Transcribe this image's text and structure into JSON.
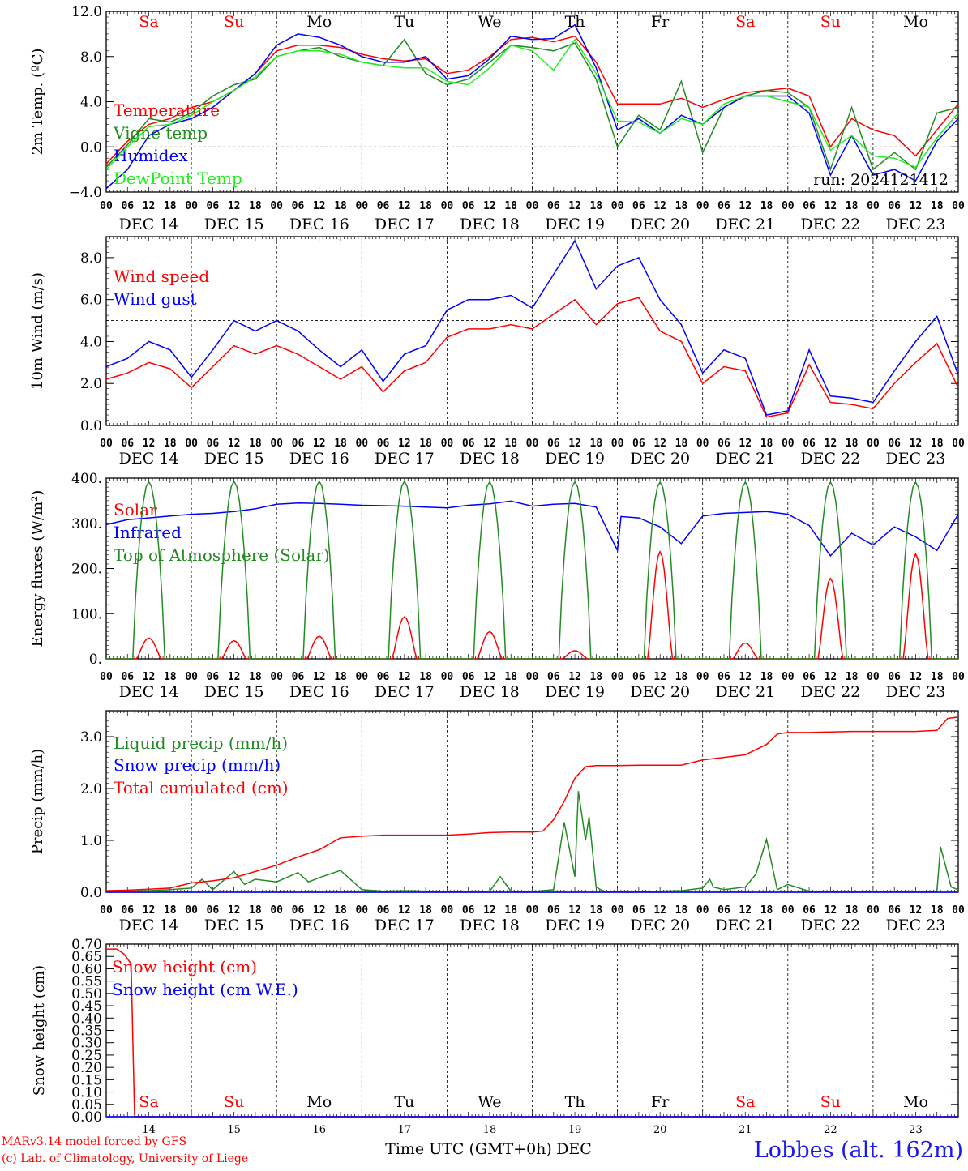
{
  "colors": {
    "red": "#ff0000",
    "green": "#228b22",
    "blue": "#0000ff",
    "light_green": "#22ee22",
    "black": "#000000"
  },
  "day_names": [
    {
      "label": "Sa",
      "color": "red"
    },
    {
      "label": "Su",
      "color": "red"
    },
    {
      "label": "Mo",
      "color": "black"
    },
    {
      "label": "Tu",
      "color": "black"
    },
    {
      "label": "We",
      "color": "black"
    },
    {
      "label": "Th",
      "color": "black"
    },
    {
      "label": "Fr",
      "color": "black"
    },
    {
      "label": "Sa",
      "color": "red"
    },
    {
      "label": "Su",
      "color": "red"
    },
    {
      "label": "Mo",
      "color": "black"
    }
  ],
  "date_labels": [
    "DEC 14",
    "DEC 15",
    "DEC 16",
    "DEC 17",
    "DEC 18",
    "DEC 19",
    "DEC 20",
    "DEC 21",
    "DEC 22",
    "DEC 23"
  ],
  "hour_labels": [
    "00",
    "06",
    "12",
    "18"
  ],
  "hour_end_label": "00",
  "day_numbers": [
    "14",
    "15",
    "16",
    "17",
    "18",
    "19",
    "20",
    "21",
    "22",
    "23"
  ],
  "footer": {
    "xlabel": "Time UTC (GMT+0h)",
    "month": "DEC",
    "credit_line1": "MARv3.14 model forced by GFS",
    "credit_line2": "(c) Lab. of Climatology, University of Liege",
    "station": "Lobbes (alt. 162m)"
  },
  "chart_data": [
    {
      "id": "temperature",
      "type": "line",
      "ylabel": "2m Temp. (ºC)",
      "ylim": [
        -4,
        12
      ],
      "yticks": [
        -4,
        0,
        4,
        8,
        12
      ],
      "ytick_labels": [
        "−4.0",
        "0.0",
        "4.0",
        "8.0",
        "12.0"
      ],
      "minor_step": 0.5,
      "reference_line": 0,
      "annotation": "run: 2024121412",
      "x_unit": "hours since DEC 14 00 UTC",
      "xlim": [
        0,
        240
      ],
      "series": [
        {
          "name": "Temperature",
          "color": "red",
          "x": [
            0,
            6,
            12,
            18,
            24,
            30,
            36,
            42,
            48,
            54,
            60,
            66,
            72,
            78,
            84,
            90,
            96,
            102,
            108,
            114,
            120,
            126,
            132,
            138,
            144,
            150,
            156,
            162,
            168,
            174,
            180,
            186,
            192,
            198,
            204,
            210,
            216,
            222,
            228,
            234,
            240
          ],
          "y": [
            -1.5,
            0.5,
            2.0,
            2.5,
            3.5,
            4.0,
            5.0,
            6.5,
            8.5,
            9.0,
            9.0,
            8.8,
            8.2,
            7.8,
            7.6,
            7.8,
            6.5,
            6.8,
            8.0,
            9.5,
            9.7,
            9.3,
            9.8,
            7.5,
            3.8,
            3.8,
            3.8,
            4.3,
            3.5,
            4.2,
            4.8,
            5.0,
            5.2,
            4.5,
            0.0,
            2.5,
            1.5,
            1.0,
            -0.8,
            1.5,
            3.8
          ]
        },
        {
          "name": "Vigne temp",
          "color": "green",
          "x": [
            0,
            6,
            12,
            18,
            24,
            30,
            36,
            42,
            48,
            54,
            60,
            66,
            72,
            78,
            84,
            90,
            96,
            102,
            108,
            114,
            120,
            126,
            132,
            138,
            144,
            150,
            156,
            162,
            168,
            174,
            180,
            186,
            192,
            198,
            204,
            210,
            216,
            222,
            228,
            234,
            240
          ],
          "y": [
            -1.8,
            0.2,
            2.5,
            2.2,
            3.0,
            4.5,
            5.5,
            6.0,
            8.0,
            8.5,
            8.8,
            8.0,
            7.5,
            7.2,
            9.5,
            6.5,
            5.5,
            6.0,
            7.5,
            9.0,
            8.8,
            8.5,
            9.2,
            6.0,
            0.0,
            2.8,
            1.5,
            5.8,
            -0.5,
            3.5,
            4.5,
            5.0,
            4.8,
            3.5,
            -2.0,
            3.5,
            -2.0,
            -0.5,
            -2.0,
            3.0,
            3.5
          ]
        },
        {
          "name": "Humidex",
          "color": "blue",
          "x": [
            0,
            6,
            12,
            18,
            24,
            30,
            36,
            42,
            48,
            54,
            60,
            66,
            72,
            78,
            84,
            90,
            96,
            102,
            108,
            114,
            120,
            126,
            132,
            138,
            144,
            150,
            156,
            162,
            168,
            174,
            180,
            186,
            192,
            198,
            204,
            210,
            216,
            222,
            228,
            234,
            240
          ],
          "y": [
            -3.7,
            -2.0,
            1.0,
            2.0,
            2.5,
            3.5,
            5.0,
            6.5,
            9.0,
            10.0,
            9.7,
            9.0,
            8.0,
            7.5,
            7.5,
            8.0,
            6.0,
            6.3,
            7.8,
            9.8,
            9.5,
            9.6,
            10.8,
            7.0,
            1.5,
            2.5,
            1.2,
            2.8,
            2.0,
            3.5,
            4.5,
            4.5,
            4.5,
            3.0,
            -2.5,
            1.0,
            -2.5,
            -2.0,
            -3.0,
            0.5,
            2.5
          ]
        },
        {
          "name": "DewPoint Temp",
          "color": "light_green",
          "x": [
            0,
            6,
            12,
            18,
            24,
            30,
            36,
            42,
            48,
            54,
            60,
            66,
            72,
            78,
            84,
            90,
            96,
            102,
            108,
            114,
            120,
            126,
            132,
            138,
            144,
            150,
            156,
            162,
            168,
            174,
            180,
            186,
            192,
            198,
            204,
            210,
            216,
            222,
            228,
            234,
            240
          ],
          "y": [
            -2.0,
            0.0,
            1.8,
            2.0,
            2.8,
            4.0,
            5.0,
            6.2,
            8.0,
            8.5,
            8.5,
            8.2,
            7.5,
            7.2,
            7.0,
            7.0,
            5.8,
            5.5,
            7.0,
            9.0,
            8.5,
            6.8,
            9.5,
            6.5,
            2.3,
            2.2,
            1.2,
            2.5,
            2.0,
            3.8,
            4.5,
            4.5,
            4.0,
            3.5,
            -0.3,
            1.0,
            -0.8,
            -1.0,
            -1.8,
            0.8,
            3.0
          ]
        }
      ]
    },
    {
      "id": "wind",
      "type": "line",
      "ylabel": "10m Wind (m/s)",
      "ylim": [
        0,
        9
      ],
      "yticks": [
        0,
        2,
        4,
        6,
        8
      ],
      "ytick_labels": [
        "0.0",
        "2.0",
        "4.0",
        "6.0",
        "8.0"
      ],
      "minor_step": 0.25,
      "reference_line": 5,
      "x_unit": "hours since DEC 14 00 UTC",
      "xlim": [
        0,
        240
      ],
      "series": [
        {
          "name": "Wind speed",
          "color": "red",
          "x": [
            0,
            6,
            12,
            18,
            24,
            30,
            36,
            42,
            48,
            54,
            60,
            66,
            72,
            78,
            84,
            90,
            96,
            102,
            108,
            114,
            120,
            126,
            132,
            138,
            144,
            150,
            156,
            162,
            168,
            174,
            180,
            186,
            192,
            198,
            204,
            210,
            216,
            222,
            228,
            234,
            240
          ],
          "y": [
            2.2,
            2.5,
            3.0,
            2.7,
            1.8,
            2.8,
            3.8,
            3.4,
            3.8,
            3.4,
            2.8,
            2.2,
            2.8,
            1.6,
            2.6,
            3.0,
            4.2,
            4.6,
            4.6,
            4.8,
            4.6,
            5.3,
            6.0,
            4.8,
            5.8,
            6.1,
            4.5,
            4.0,
            2.0,
            2.8,
            2.6,
            0.4,
            0.6,
            2.9,
            1.1,
            1.0,
            0.8,
            2.0,
            3.0,
            3.9,
            1.8
          ]
        },
        {
          "name": "Wind gust",
          "color": "blue",
          "x": [
            0,
            6,
            12,
            18,
            24,
            30,
            36,
            42,
            48,
            54,
            60,
            66,
            72,
            78,
            84,
            90,
            96,
            102,
            108,
            114,
            120,
            126,
            132,
            138,
            144,
            150,
            156,
            162,
            168,
            174,
            180,
            186,
            192,
            198,
            204,
            210,
            216,
            222,
            228,
            234,
            240
          ],
          "y": [
            2.8,
            3.2,
            4.0,
            3.6,
            2.3,
            3.6,
            5.0,
            4.5,
            5.0,
            4.5,
            3.6,
            2.8,
            3.6,
            2.1,
            3.4,
            3.8,
            5.5,
            6.0,
            6.0,
            6.2,
            5.6,
            7.2,
            8.8,
            6.5,
            7.6,
            8.0,
            6.0,
            4.8,
            2.5,
            3.6,
            3.2,
            0.5,
            0.7,
            3.6,
            1.4,
            1.3,
            1.1,
            2.6,
            4.0,
            5.2,
            2.4
          ]
        }
      ]
    },
    {
      "id": "energy",
      "type": "line",
      "ylabel": "Energy fluxes (W/m²)",
      "ylim": [
        0,
        400
      ],
      "yticks": [
        0,
        100,
        200,
        300,
        400
      ],
      "ytick_labels": [
        "0.",
        "100.",
        "200.",
        "300.",
        "400."
      ],
      "minor_step": 10,
      "x_unit": "hours since DEC 14 00 UTC",
      "xlim": [
        0,
        240
      ],
      "series": [
        {
          "name": "Solar",
          "color": "red",
          "day_peaks": [
            46,
            40,
            50,
            93,
            60,
            18,
            237,
            35,
            178,
            232
          ]
        },
        {
          "name": "Infrared",
          "color": "blue",
          "x": [
            0,
            6,
            12,
            18,
            24,
            30,
            36,
            42,
            48,
            54,
            60,
            66,
            72,
            78,
            84,
            90,
            96,
            102,
            108,
            114,
            120,
            126,
            132,
            138,
            144,
            145,
            150,
            156,
            162,
            168,
            174,
            180,
            186,
            192,
            198,
            204,
            210,
            216,
            222,
            228,
            234,
            240
          ],
          "y": [
            297,
            308,
            312,
            316,
            320,
            322,
            326,
            332,
            342,
            345,
            344,
            342,
            340,
            339,
            338,
            336,
            334,
            340,
            343,
            349,
            338,
            342,
            344,
            336,
            240,
            315,
            312,
            292,
            255,
            316,
            322,
            324,
            326,
            320,
            295,
            228,
            278,
            252,
            292,
            270,
            240,
            320
          ]
        },
        {
          "name": "Top of Atmosphere (Solar)",
          "color": "green",
          "day_peaks": [
            392,
            393,
            393,
            393,
            392,
            392,
            391,
            391,
            391,
            391
          ]
        }
      ]
    },
    {
      "id": "precip",
      "type": "line",
      "ylabel": "Precip (mm/h)",
      "ylim": [
        0,
        3.5
      ],
      "yticks": [
        0,
        1,
        2,
        3
      ],
      "ytick_labels": [
        "0.0",
        "1.0",
        "2.0",
        "3.0"
      ],
      "minor_step": 0.1,
      "x_unit": "hours since DEC 14 00 UTC",
      "xlim": [
        0,
        240
      ],
      "series": [
        {
          "name": "Liquid precip (mm/h)",
          "color": "green",
          "x": [
            0,
            6,
            12,
            18,
            24,
            27,
            30,
            36,
            39,
            42,
            48,
            54,
            57,
            60,
            66,
            72,
            78,
            84,
            90,
            96,
            102,
            108,
            111,
            114,
            120,
            126,
            129,
            132,
            133,
            135,
            136,
            138,
            140,
            144,
            150,
            156,
            162,
            168,
            170,
            171,
            174,
            180,
            183,
            186,
            189,
            192,
            198,
            204,
            210,
            216,
            222,
            228,
            234,
            235,
            238,
            240
          ],
          "y": [
            0.02,
            0.02,
            0.03,
            0.05,
            0.08,
            0.25,
            0.05,
            0.4,
            0.15,
            0.25,
            0.2,
            0.38,
            0.2,
            0.28,
            0.42,
            0.05,
            0.02,
            0.03,
            0.02,
            0.01,
            0.01,
            0.02,
            0.3,
            0.02,
            0.01,
            0.05,
            1.35,
            0.3,
            1.95,
            1.0,
            1.45,
            0.1,
            0.02,
            0.01,
            0.01,
            0.02,
            0.03,
            0.08,
            0.25,
            0.1,
            0.05,
            0.1,
            0.35,
            1.02,
            0.05,
            0.15,
            0.02,
            0.01,
            0.01,
            0.01,
            0.01,
            0.01,
            0.02,
            0.88,
            0.1,
            0.05
          ]
        },
        {
          "name": "Snow precip (mm/h)",
          "color": "blue",
          "x": [
            0,
            240
          ],
          "y": [
            0,
            0
          ]
        },
        {
          "name": "Total cumulated (cm)",
          "color": "red",
          "x": [
            0,
            6,
            12,
            18,
            24,
            30,
            36,
            42,
            48,
            54,
            60,
            66,
            72,
            78,
            84,
            90,
            96,
            102,
            108,
            114,
            120,
            123,
            126,
            129,
            132,
            135,
            138,
            144,
            150,
            156,
            162,
            168,
            174,
            180,
            186,
            189,
            192,
            198,
            204,
            210,
            216,
            222,
            228,
            234,
            237,
            240
          ],
          "y": [
            0.03,
            0.04,
            0.06,
            0.08,
            0.18,
            0.22,
            0.28,
            0.4,
            0.52,
            0.68,
            0.82,
            1.05,
            1.08,
            1.1,
            1.1,
            1.1,
            1.1,
            1.12,
            1.15,
            1.16,
            1.16,
            1.18,
            1.4,
            1.75,
            2.2,
            2.42,
            2.44,
            2.44,
            2.45,
            2.45,
            2.45,
            2.55,
            2.6,
            2.65,
            2.85,
            3.05,
            3.08,
            3.08,
            3.09,
            3.1,
            3.1,
            3.1,
            3.1,
            3.12,
            3.35,
            3.38
          ]
        }
      ]
    },
    {
      "id": "snow",
      "type": "line",
      "ylabel": "Snow height (cm)",
      "ylim": [
        0,
        0.7
      ],
      "yticks": [
        0,
        0.05,
        0.1,
        0.15,
        0.2,
        0.25,
        0.3,
        0.35,
        0.4,
        0.45,
        0.5,
        0.55,
        0.6,
        0.65,
        0.7
      ],
      "ytick_labels": [
        "0.00",
        "0.05",
        "0.10",
        "0.15",
        "0.20",
        "0.25",
        "0.30",
        "0.35",
        "0.40",
        "0.45",
        "0.50",
        "0.55",
        "0.60",
        "0.65",
        "0.70"
      ],
      "x_unit": "hours since DEC 14 00 UTC",
      "xlim": [
        0,
        240
      ],
      "series": [
        {
          "name": "Snow height (cm)",
          "color": "red",
          "x": [
            0,
            3,
            5,
            7,
            8,
            240
          ],
          "y": [
            0.68,
            0.68,
            0.66,
            0.62,
            0.0,
            0.0
          ]
        },
        {
          "name": "Snow height (cm W.E.)",
          "color": "blue",
          "x": [
            0,
            240
          ],
          "y": [
            0,
            0
          ]
        }
      ]
    }
  ]
}
